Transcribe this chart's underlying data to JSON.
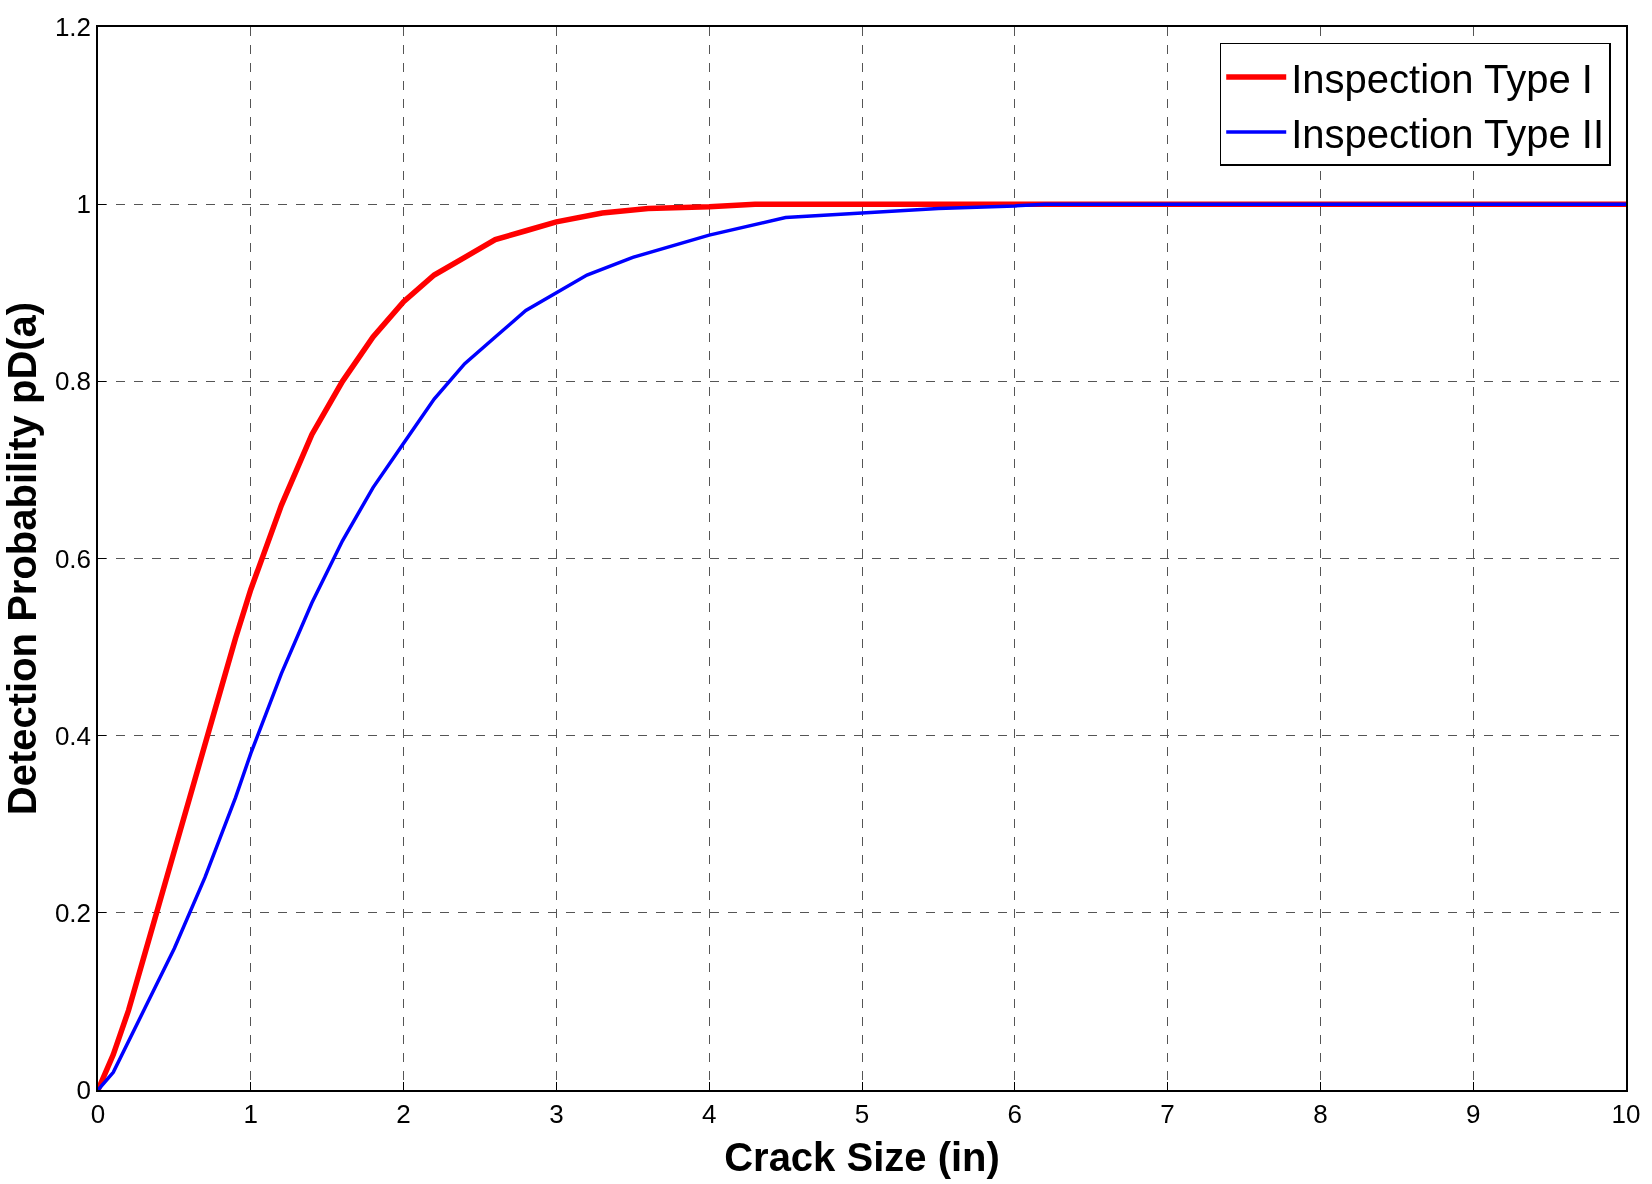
{
  "chart_data": {
    "type": "line",
    "xlabel": "Crack Size (in)",
    "ylabel": "Detection Probability pD(a)",
    "xlim": [
      0,
      10
    ],
    "xticks": [
      0,
      1,
      2,
      3,
      4,
      5,
      6,
      7,
      8,
      9,
      10
    ],
    "ylim": [
      0,
      1.2
    ],
    "yticks": [
      0,
      0.2,
      0.4,
      0.6,
      0.8,
      1,
      1.2
    ],
    "grid": true,
    "legend": "top right",
    "line_style": "solid",
    "series": [
      {
        "name": "Inspection Type I",
        "color": "#ff0000",
        "x": [
          0,
          0.1,
          0.2,
          0.3,
          0.4,
          0.5,
          0.6,
          0.7,
          0.8,
          0.9,
          1.0,
          1.2,
          1.4,
          1.6,
          1.8,
          2.0,
          2.2,
          2.4,
          2.6,
          2.8,
          3.0,
          3.3,
          3.6,
          4.0,
          4.3,
          10
        ],
        "values": [
          0,
          0.04,
          0.09,
          0.15,
          0.21,
          0.27,
          0.33,
          0.39,
          0.45,
          0.51,
          0.565,
          0.66,
          0.74,
          0.8,
          0.85,
          0.89,
          0.92,
          0.94,
          0.96,
          0.97,
          0.98,
          0.99,
          0.995,
          0.997,
          1,
          1
        ]
      },
      {
        "name": "Inspection Type II",
        "color": "#0000ff",
        "x": [
          0,
          0.1,
          0.3,
          0.5,
          0.7,
          0.9,
          1.0,
          1.2,
          1.4,
          1.6,
          1.8,
          2.0,
          2.2,
          2.4,
          2.6,
          2.8,
          3.0,
          3.2,
          3.5,
          4.0,
          4.5,
          5.0,
          5.5,
          6.0,
          6.2,
          10
        ],
        "values": [
          0,
          0.02,
          0.09,
          0.16,
          0.24,
          0.33,
          0.38,
          0.47,
          0.55,
          0.62,
          0.68,
          0.73,
          0.78,
          0.82,
          0.85,
          0.88,
          0.9,
          0.92,
          0.94,
          0.965,
          0.985,
          0.99,
          0.995,
          0.998,
          1,
          1
        ]
      }
    ]
  }
}
